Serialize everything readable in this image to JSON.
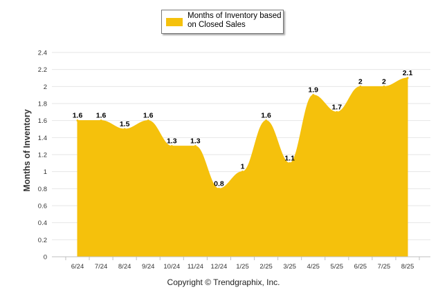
{
  "chart_data": {
    "type": "area",
    "title": "",
    "legend": {
      "label": "Months of Inventory based on Closed Sales",
      "placement": "top-center"
    },
    "ylabel": "Months of Inventory",
    "xlabel": "",
    "ylim": [
      0,
      2.4
    ],
    "yticks": [
      "0",
      "0.2",
      "0.4",
      "0.6",
      "0.8",
      "1",
      "1.2",
      "1.4",
      "1.6",
      "1.8",
      "2",
      "2.2",
      "2.4"
    ],
    "ytick_values": [
      0,
      0.2,
      0.4,
      0.6,
      0.8,
      1,
      1.2,
      1.4,
      1.6,
      1.8,
      2,
      2.2,
      2.4
    ],
    "categories": [
      "6/24",
      "7/24",
      "8/24",
      "9/24",
      "10/24",
      "11/24",
      "12/24",
      "1/25",
      "2/25",
      "3/25",
      "4/25",
      "5/25",
      "6/25",
      "7/25",
      "8/25"
    ],
    "series": [
      {
        "name": "Months of Inventory based on Closed Sales",
        "values": [
          1.6,
          1.6,
          1.5,
          1.6,
          1.3,
          1.3,
          0.8,
          1,
          1.6,
          1.1,
          1.9,
          1.7,
          2,
          2,
          2.1
        ],
        "value_labels": [
          "1.6",
          "1.6",
          "1.5",
          "1.6",
          "1.3",
          "1.3",
          "0.8",
          "1",
          "1.6",
          "1.1",
          "1.9",
          "1.7",
          "2",
          "2",
          "2.1"
        ],
        "color": "#F5C10C"
      }
    ],
    "grid": true
  },
  "footer": {
    "copyright": "Copyright © Trendgraphix, Inc."
  },
  "colors": {
    "area": "#F5C10C",
    "grid": "#E6E6E6",
    "axis": "#BFBFBF"
  }
}
